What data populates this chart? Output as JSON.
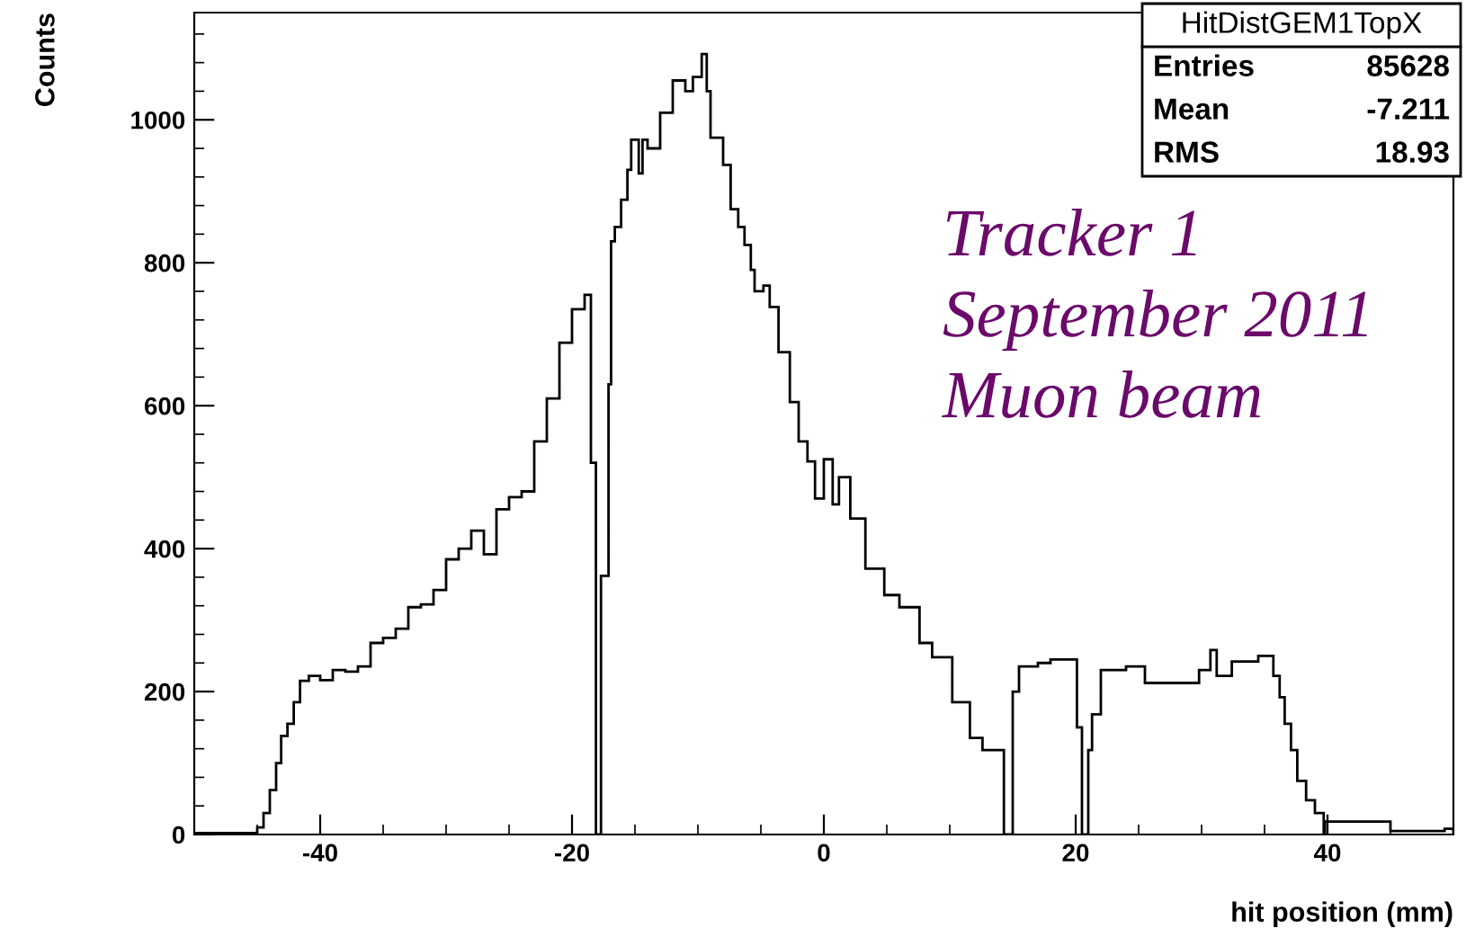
{
  "chart_data": {
    "type": "histogram",
    "xlabel": "hit position (mm)",
    "ylabel": "Counts",
    "bins": [
      -50,
      -45,
      -44.5,
      -44,
      -43.5,
      -43.1,
      -42.6,
      -42.1,
      -41.6,
      -40.9,
      -40,
      -39,
      -38,
      -37,
      -36,
      -35,
      -34,
      -33,
      -32,
      -31,
      -30,
      -29,
      -28,
      -27,
      -26,
      -25,
      -24,
      -23,
      -22,
      -21,
      -20,
      -19,
      -18.5,
      -18.1,
      -17.7,
      -17.1,
      -16.9,
      -16.6,
      -16.1,
      -15.6,
      -15.3,
      -14.7,
      -14.4,
      -14,
      -13,
      -12,
      -11,
      -10.4,
      -9.7,
      -9.3,
      -9,
      -8,
      -7.4,
      -6.8,
      -6.3,
      -5.8,
      -5.5,
      -4.8,
      -4.3,
      -3.6,
      -2.7,
      -2,
      -1.3,
      -0.7,
      0,
      0.7,
      1.2,
      2.1,
      3.3,
      4.8,
      6,
      7.6,
      8.6,
      10.2,
      11.6,
      12.6,
      14.3,
      15,
      15.5,
      17,
      18,
      20.1,
      20.5,
      21,
      21.3,
      22,
      24,
      25.5,
      29.8,
      30.7,
      31.2,
      32.4,
      34.5,
      35.7,
      36.2,
      36.6,
      37.1,
      37.6,
      38.3,
      39,
      39.7,
      39.8,
      45,
      49.3,
      50
    ],
    "values": [
      2,
      10,
      30,
      62,
      100,
      138,
      155,
      185,
      215,
      222,
      216,
      230,
      228,
      235,
      268,
      275,
      288,
      318,
      322,
      342,
      385,
      400,
      425,
      392,
      455,
      472,
      480,
      550,
      610,
      688,
      735,
      755,
      520,
      0,
      362,
      630,
      830,
      850,
      888,
      930,
      972,
      925,
      972,
      960,
      1010,
      1055,
      1040,
      1060,
      1092,
      1040,
      975,
      937,
      875,
      850,
      825,
      790,
      760,
      768,
      738,
      675,
      605,
      550,
      522,
      470,
      525,
      462,
      500,
      442,
      372,
      335,
      318,
      268,
      248,
      185,
      135,
      118,
      0,
      200,
      235,
      240,
      245,
      150,
      0,
      118,
      168,
      230,
      235,
      212,
      230,
      258,
      222,
      242,
      250,
      222,
      192,
      155,
      118,
      75,
      48,
      30,
      0,
      18,
      5,
      8
    ],
    "color": "#000000",
    "xlim": [
      -50,
      50
    ],
    "xticks": [
      -40,
      -20,
      0,
      20,
      40
    ],
    "ylim": [
      0,
      1150
    ],
    "yticks": [
      0,
      200,
      400,
      600,
      800,
      1000
    ],
    "grid": false,
    "legend": false,
    "annotations": [
      "HitDistGEM1TopX",
      "Entries",
      "85628",
      "Mean",
      "-7.211",
      "RMS",
      "18.93",
      "Tracker 1",
      "September 2011",
      "Muon beam"
    ]
  }
}
